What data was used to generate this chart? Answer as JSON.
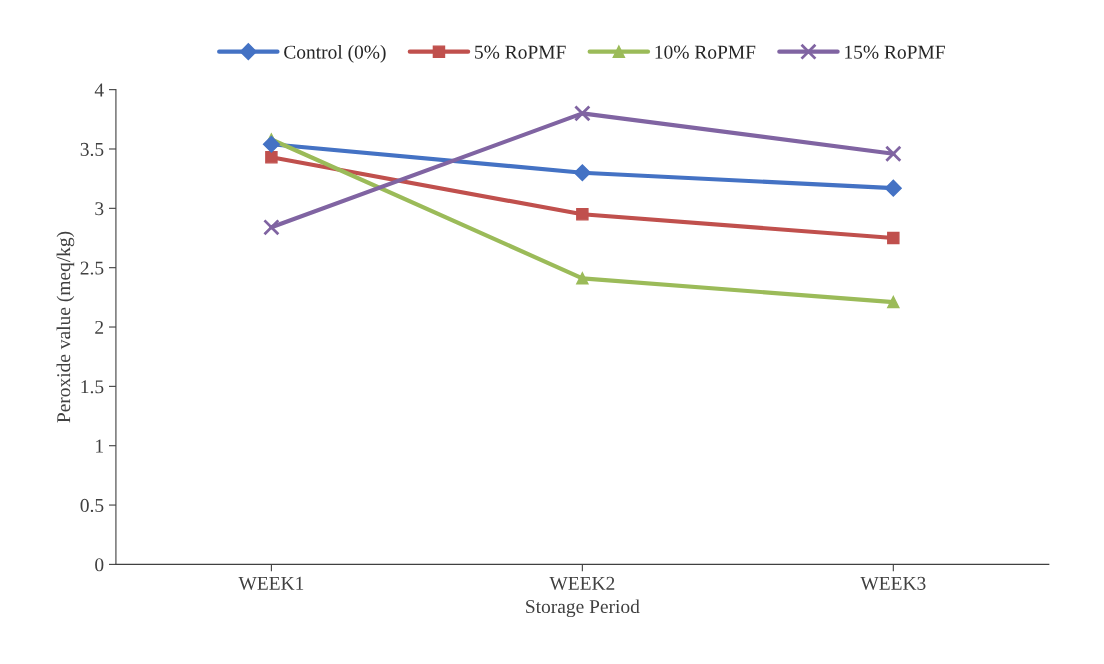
{
  "chart_data": {
    "type": "line",
    "xlabel": "Storage Period",
    "ylabel": "Peroxide value (meq/kg)",
    "categories": [
      "WEEK1",
      "WEEK2",
      "WEEK3"
    ],
    "series": [
      {
        "name": "Control (0%)",
        "color": "#4472c4",
        "marker": "diamond",
        "values": [
          3.54,
          3.3,
          3.17
        ]
      },
      {
        "name": "5% RoPMF",
        "color": "#c0504d",
        "marker": "square",
        "values": [
          3.43,
          2.95,
          2.75
        ]
      },
      {
        "name": "10% RoPMF",
        "color": "#9bbb59",
        "marker": "triangle",
        "values": [
          3.58,
          2.41,
          2.21
        ]
      },
      {
        "name": "15% RoPMF",
        "color": "#8064a2",
        "marker": "cross",
        "values": [
          2.84,
          3.8,
          3.46
        ]
      }
    ],
    "ylim": [
      0,
      4
    ],
    "yticks": [
      0,
      0.5,
      1,
      1.5,
      2,
      2.5,
      3,
      3.5,
      4
    ],
    "grid": false,
    "legend": "top"
  }
}
